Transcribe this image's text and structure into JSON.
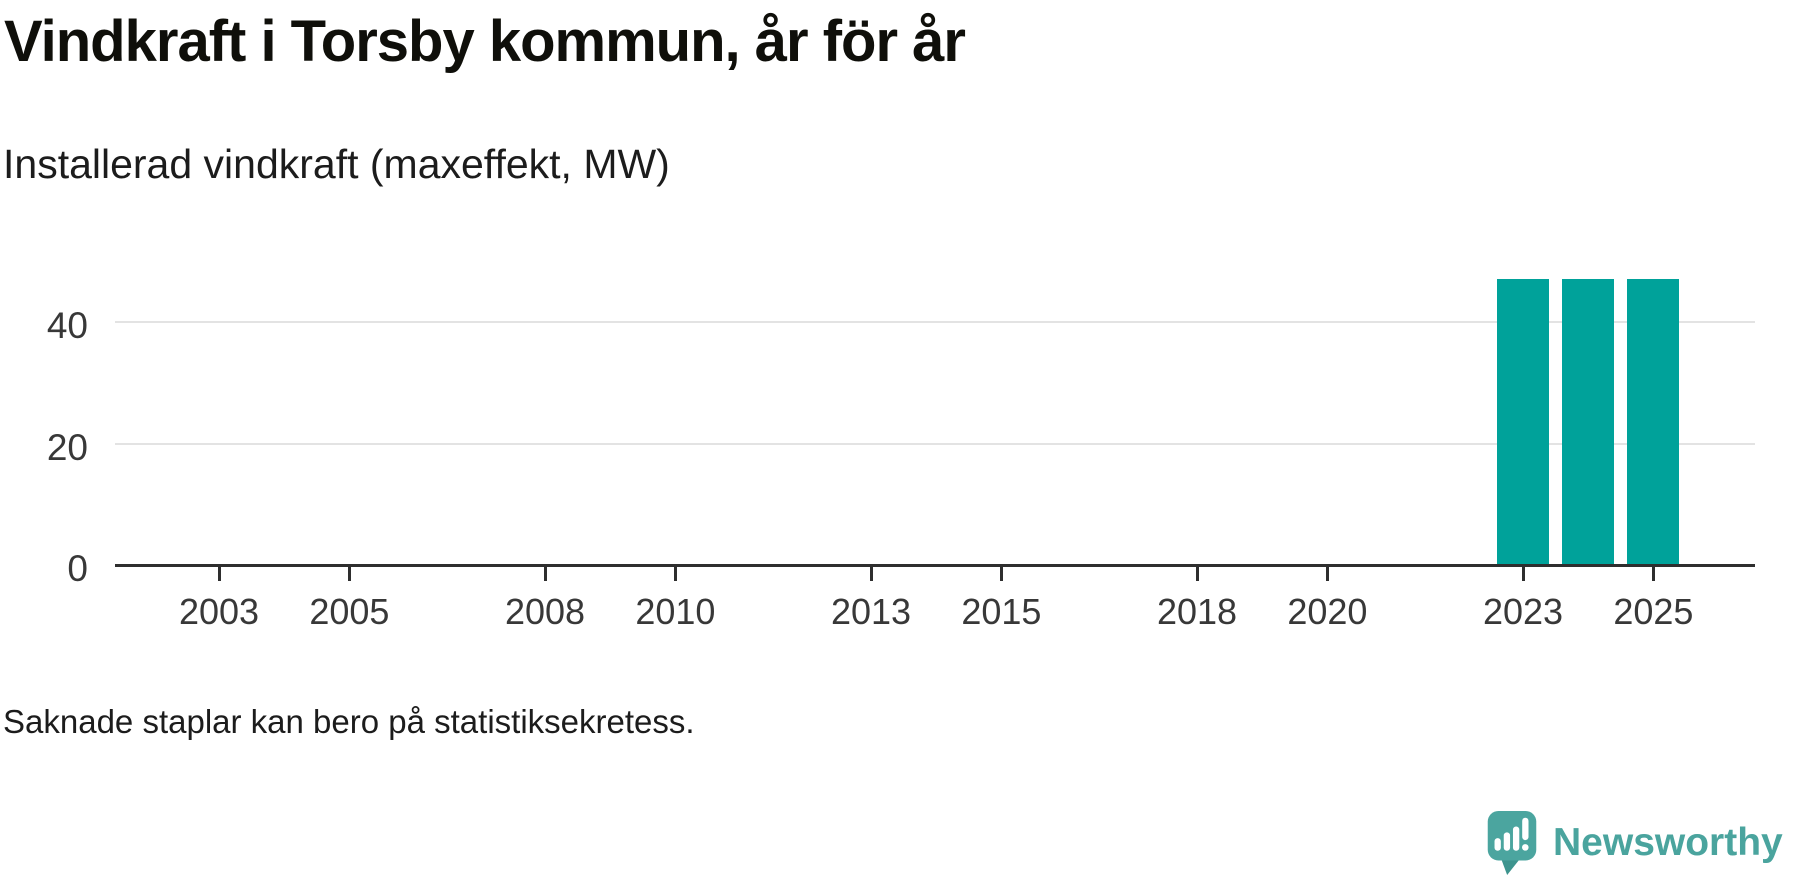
{
  "header": {
    "title": "Vindkraft i Torsby kommun, år för år",
    "subtitle": "Installerad vindkraft (maxeffekt, MW)"
  },
  "footnote": "Saknade staplar kan bero på statistiksekretess.",
  "brand": {
    "name": "Newsworthy",
    "color": "#4aa49e",
    "icon": "newsworthy-speech-bubble-chart-icon"
  },
  "chart_data": {
    "type": "bar",
    "title": "Vindkraft i Torsby kommun, år för år",
    "subtitle": "Installerad vindkraft (maxeffekt, MW)",
    "ylabel": "Installerad vindkraft (maxeffekt, MW)",
    "xlabel": "",
    "categories": [
      2023,
      2024,
      2025
    ],
    "values": [
      47,
      47,
      47
    ],
    "unit": "MW",
    "xticks": [
      2003,
      2005,
      2008,
      2010,
      2013,
      2015,
      2018,
      2020,
      2023,
      2025
    ],
    "yticks": [
      0,
      20,
      40
    ],
    "xlim": [
      2001.4,
      2026.5
    ],
    "ylim": [
      0,
      56
    ],
    "bar_color": "#00a29a",
    "grid": "horizontal-only",
    "legend": "none"
  }
}
